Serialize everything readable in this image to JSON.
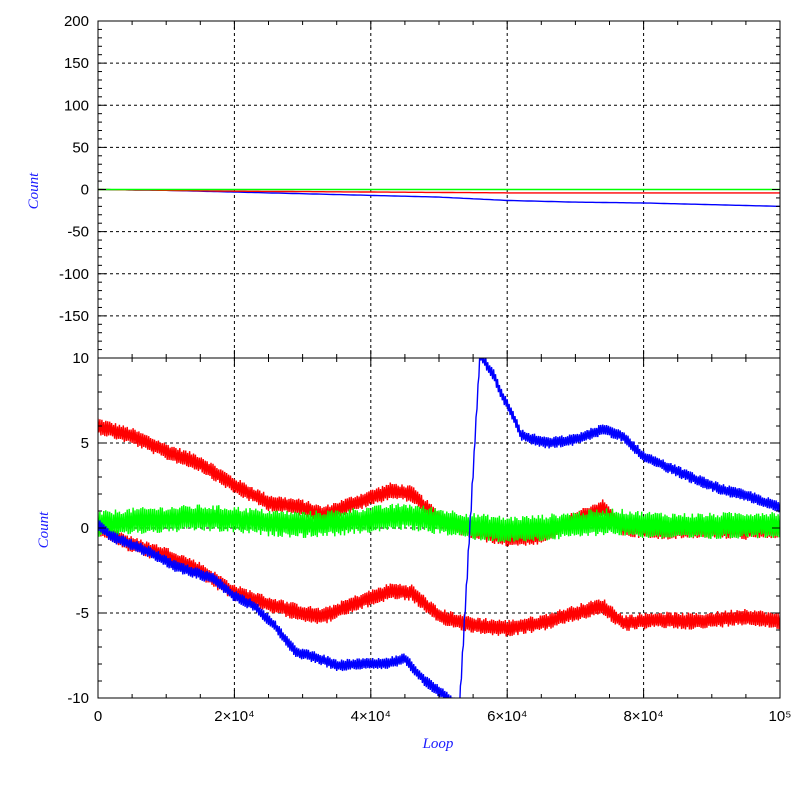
{
  "chart_data": [
    {
      "type": "line",
      "panel": "top",
      "ylabel": "Count",
      "xlim": [
        0,
        100000
      ],
      "ylim": [
        -200,
        200
      ],
      "grid": true,
      "y_ticks": [
        200,
        150,
        100,
        50,
        0,
        -50,
        -100,
        -150
      ],
      "series": [
        {
          "color": "#0000ff",
          "x": [
            0,
            10000,
            20000,
            30000,
            40000,
            50000,
            60000,
            70000,
            80000,
            90000,
            100000
          ],
          "values": [
            0,
            -1,
            -3,
            -5,
            -7,
            -9,
            -13,
            -15,
            -16,
            -18,
            -20
          ]
        },
        {
          "color": "#ff0000",
          "x": [
            0,
            20000,
            40000,
            60000,
            80000,
            100000
          ],
          "values": [
            0,
            -2,
            -3,
            -4,
            -4,
            -4
          ]
        },
        {
          "color": "#00ff00",
          "x": [
            0,
            20000,
            40000,
            60000,
            80000,
            100000
          ],
          "values": [
            0,
            0,
            0,
            0,
            0,
            0
          ]
        }
      ]
    },
    {
      "type": "line",
      "panel": "bottom",
      "xlabel": "Loop",
      "ylabel": "Count",
      "xlim": [
        0,
        100000
      ],
      "ylim": [
        -10,
        10
      ],
      "grid": true,
      "x_ticks": [
        {
          "value": 0,
          "label": "0"
        },
        {
          "value": 20000,
          "label": "2×10⁴"
        },
        {
          "value": 40000,
          "label": "4×10⁴"
        },
        {
          "value": 60000,
          "label": "6×10⁴"
        },
        {
          "value": 80000,
          "label": "8×10⁴"
        },
        {
          "value": 100000,
          "label": "10⁵"
        }
      ],
      "y_ticks": [
        10,
        5,
        0,
        -5,
        -10
      ],
      "series": [
        {
          "color": "#ff0000",
          "x": [
            0,
            5000,
            10000,
            15000,
            20000,
            25000,
            30000,
            33000,
            38000,
            43000,
            46000,
            50000,
            55000,
            60000,
            65000,
            70000,
            74000,
            77000,
            82000,
            88000,
            95000,
            100000
          ],
          "values": [
            6,
            5.4,
            4.5,
            3.8,
            2.5,
            1.5,
            1.2,
            0.8,
            1.5,
            2.2,
            2.0,
            0.5,
            -0.2,
            -0.6,
            -0.5,
            0.5,
            1.2,
            0.0,
            -0.2,
            -0.1,
            -0.2,
            -0.1
          ],
          "band": 0.5
        },
        {
          "color": "#ff0000",
          "x": [
            0,
            5000,
            10000,
            15000,
            20000,
            25000,
            30000,
            33000,
            38000,
            43000,
            46000,
            50000,
            55000,
            60000,
            65000,
            70000,
            74000,
            77000,
            82000,
            88000,
            95000,
            100000
          ],
          "values": [
            0,
            -1.0,
            -1.6,
            -2.5,
            -3.8,
            -4.5,
            -5.0,
            -5.2,
            -4.4,
            -3.7,
            -3.8,
            -5.2,
            -5.7,
            -5.9,
            -5.6,
            -5.0,
            -4.6,
            -5.6,
            -5.4,
            -5.5,
            -5.2,
            -5.5
          ],
          "band": 0.5
        },
        {
          "color": "#00ff00",
          "x": [
            0,
            5000,
            10000,
            15000,
            20000,
            25000,
            30000,
            35000,
            40000,
            45000,
            50000,
            55000,
            60000,
            65000,
            70000,
            75000,
            80000,
            85000,
            90000,
            95000,
            100000
          ],
          "values": [
            0.2,
            0.4,
            0.5,
            0.6,
            0.5,
            0.3,
            0.2,
            0.3,
            0.5,
            0.7,
            0.4,
            0.1,
            -0.1,
            0.0,
            0.2,
            0.4,
            0.2,
            0.1,
            0.1,
            0.2,
            0.2
          ],
          "band": 0.8
        },
        {
          "color": "#0000ff",
          "x": [
            0,
            2000,
            5000,
            8000,
            11000,
            14000,
            17000,
            20000,
            23000,
            26000,
            29000,
            32000,
            35000,
            38000,
            42000,
            45000,
            48000,
            53000,
            56000,
            58000,
            59000,
            61000,
            62000,
            63000,
            66000,
            70000,
            74000,
            77000,
            80000,
            84000,
            88000,
            92000,
            96000,
            100000
          ],
          "values": [
            0.2,
            -0.5,
            -1.0,
            -1.5,
            -2.2,
            -2.6,
            -3.0,
            -4.0,
            -4.6,
            -5.8,
            -7.3,
            -7.6,
            -8.1,
            -8.0,
            -8.0,
            -7.7,
            -9.0,
            -10.5,
            10.2,
            9.0,
            8.0,
            6.5,
            5.5,
            5.3,
            5.0,
            5.2,
            5.8,
            5.4,
            4.2,
            3.5,
            2.8,
            2.2,
            1.8,
            1.2
          ],
          "band": 0.35
        }
      ]
    }
  ]
}
